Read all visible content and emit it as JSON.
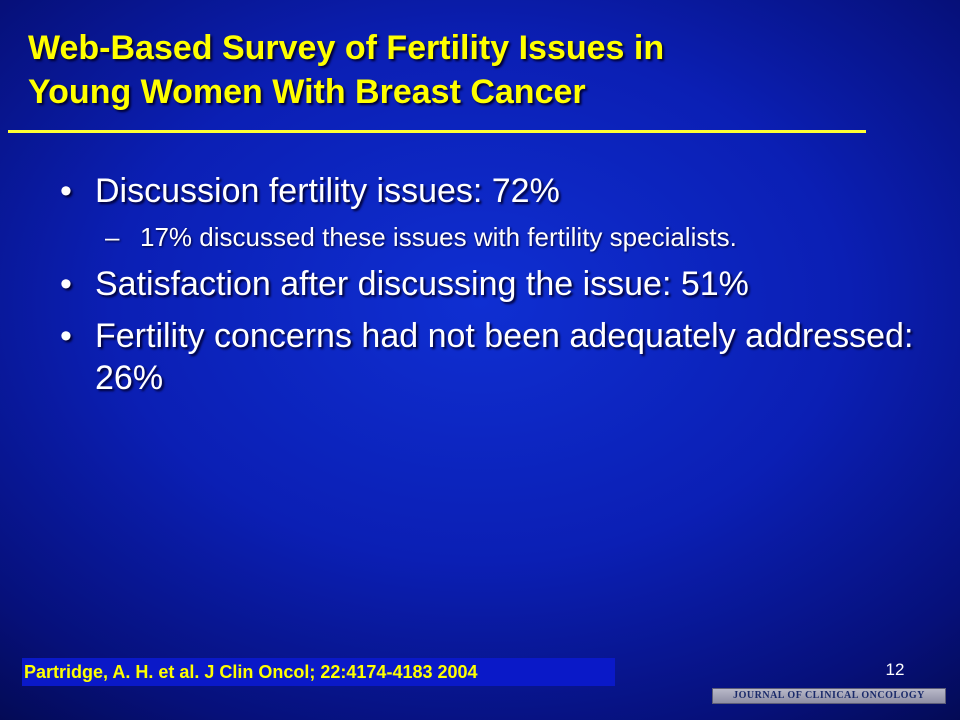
{
  "slide": {
    "title_lines": [
      "Web-Based Survey of Fertility Issues in",
      "Young Women With Breast Cancer"
    ],
    "bullet_symbol": "•",
    "sub_bullet_symbol": "–",
    "bullets": [
      {
        "text": "Discussion fertility issues: 72%",
        "sub_bullets": [
          "17% discussed these issues with fertility specialists."
        ]
      },
      {
        "text": "Satisfaction after discussing the issue: 51%"
      },
      {
        "text": "Fertility concerns had not been adequately addressed: 26%"
      }
    ],
    "citation": "Partridge, A. H. et al. J Clin Oncol; 22:4174-4183 2004",
    "page_number": "12",
    "logo_text": "JOURNAL OF CLINICAL ONCOLOGY"
  },
  "colors": {
    "title": "#ffff00",
    "body_text": "#ffffff",
    "background": "#0b1fb4",
    "citation_bg": "#0a19c8"
  }
}
